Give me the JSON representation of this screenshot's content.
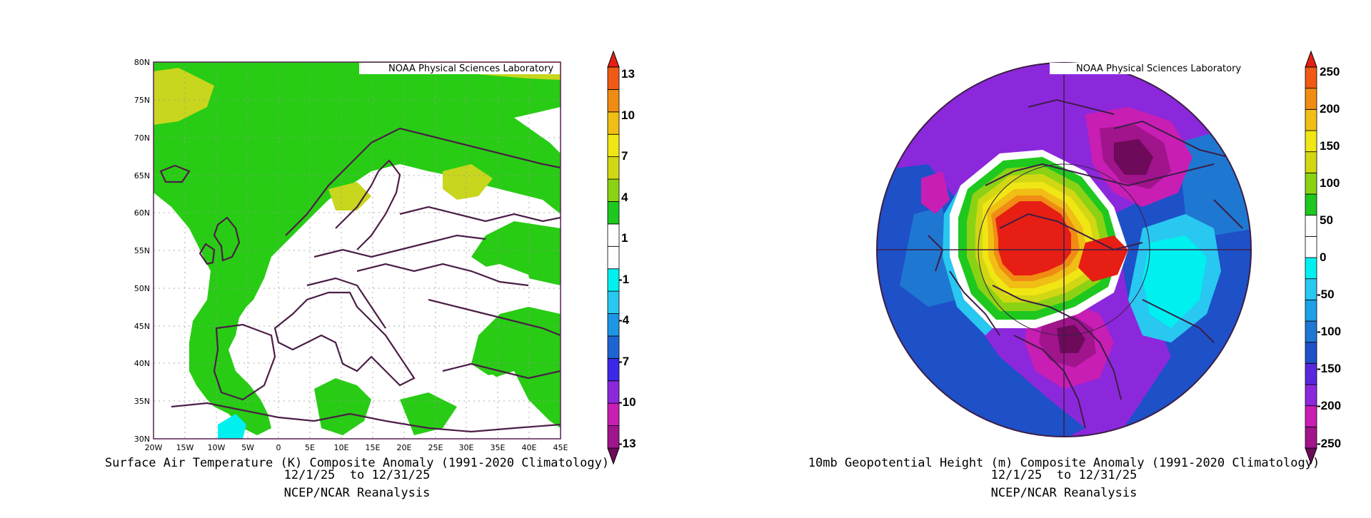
{
  "left_map": {
    "credit": "NOAA Physical Sciences Laboratory",
    "lat_labels": [
      "80N",
      "75N",
      "70N",
      "65N",
      "60N",
      "55N",
      "50N",
      "45N",
      "40N",
      "35N",
      "30N"
    ],
    "lon_labels": [
      "20W",
      "15W",
      "10W",
      "5W",
      "0",
      "5E",
      "10E",
      "15E",
      "20E",
      "25E",
      "30E",
      "35E",
      "40E",
      "45E"
    ],
    "title": "Surface Air Temperature (K) Composite Anomaly (1991-2020 Climatology)",
    "dates": "12/1/25  to 12/31/25",
    "source": "NCEP/NCAR Reanalysis",
    "colorbar": {
      "labels": [
        "13",
        "10",
        "7",
        "4",
        "1",
        "-1",
        "-4",
        "-7",
        "-10",
        "-13"
      ],
      "colors": [
        "#6e0a5a",
        "#a0148c",
        "#c81eb4",
        "#8c28dc",
        "#3c28e6",
        "#1e64d2",
        "#1e96e6",
        "#28c8f0",
        "#00f0f0",
        "#ffffff",
        "#ffffff",
        "#1ec81e",
        "#8cd214",
        "#d2d714",
        "#f0e614",
        "#f0be14",
        "#f08c14",
        "#f05a14",
        "#e61e14"
      ]
    }
  },
  "right_map": {
    "credit": "NOAA Physical Sciences Laboratory",
    "title": "10mb Geopotential Height (m) Composite Anomaly (1991-2020 Climatology)",
    "dates": "12/1/25  to 12/31/25",
    "source": "NCEP/NCAR Reanalysis",
    "colorbar": {
      "labels": [
        "250",
        "200",
        "150",
        "100",
        "50",
        "0",
        "-50",
        "-100",
        "-150",
        "-200",
        "-250"
      ],
      "colors": [
        "#6e0a5a",
        "#a0148c",
        "#c81eb4",
        "#8c28dc",
        "#5a28dc",
        "#1e50c8",
        "#1e78d2",
        "#1ea0e6",
        "#28c8f0",
        "#00f0f0",
        "#ffffff",
        "#ffffff",
        "#1ec81e",
        "#8cd214",
        "#d2d714",
        "#f0e614",
        "#f0be14",
        "#f08c14",
        "#f05a14",
        "#e61e14"
      ]
    }
  }
}
